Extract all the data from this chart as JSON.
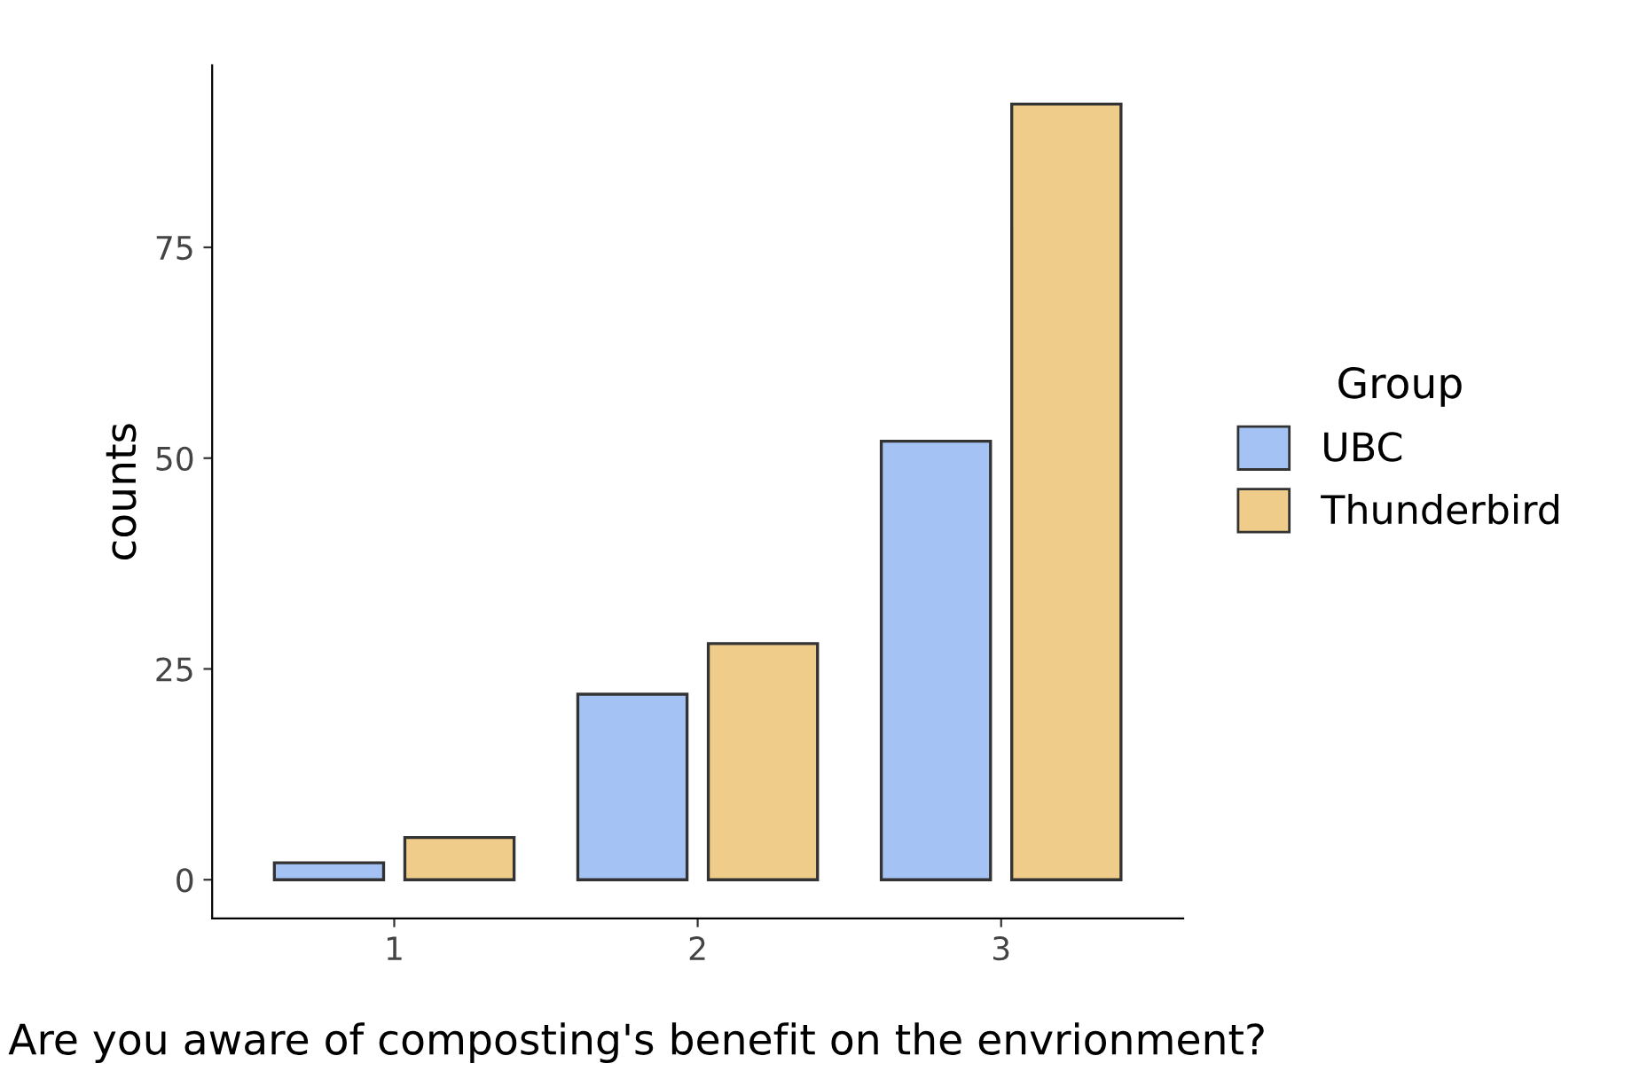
{
  "chart_data": {
    "type": "bar",
    "xlabel": "Are you aware of composting's benefit on the envrionment?",
    "ylabel": "counts",
    "legend_title": "Group",
    "categories": [
      "1",
      "2",
      "3"
    ],
    "series": [
      {
        "name": "UBC",
        "color": "#a4c2f4",
        "values": [
          2,
          22,
          52
        ]
      },
      {
        "name": "Thunderbird",
        "color": "#f0cc8a",
        "values": [
          5,
          28,
          92
        ]
      }
    ],
    "ylim": [
      -4.6,
      96.6
    ],
    "yticks": [
      0,
      25,
      50,
      75
    ],
    "grid": false,
    "legend": "right"
  }
}
